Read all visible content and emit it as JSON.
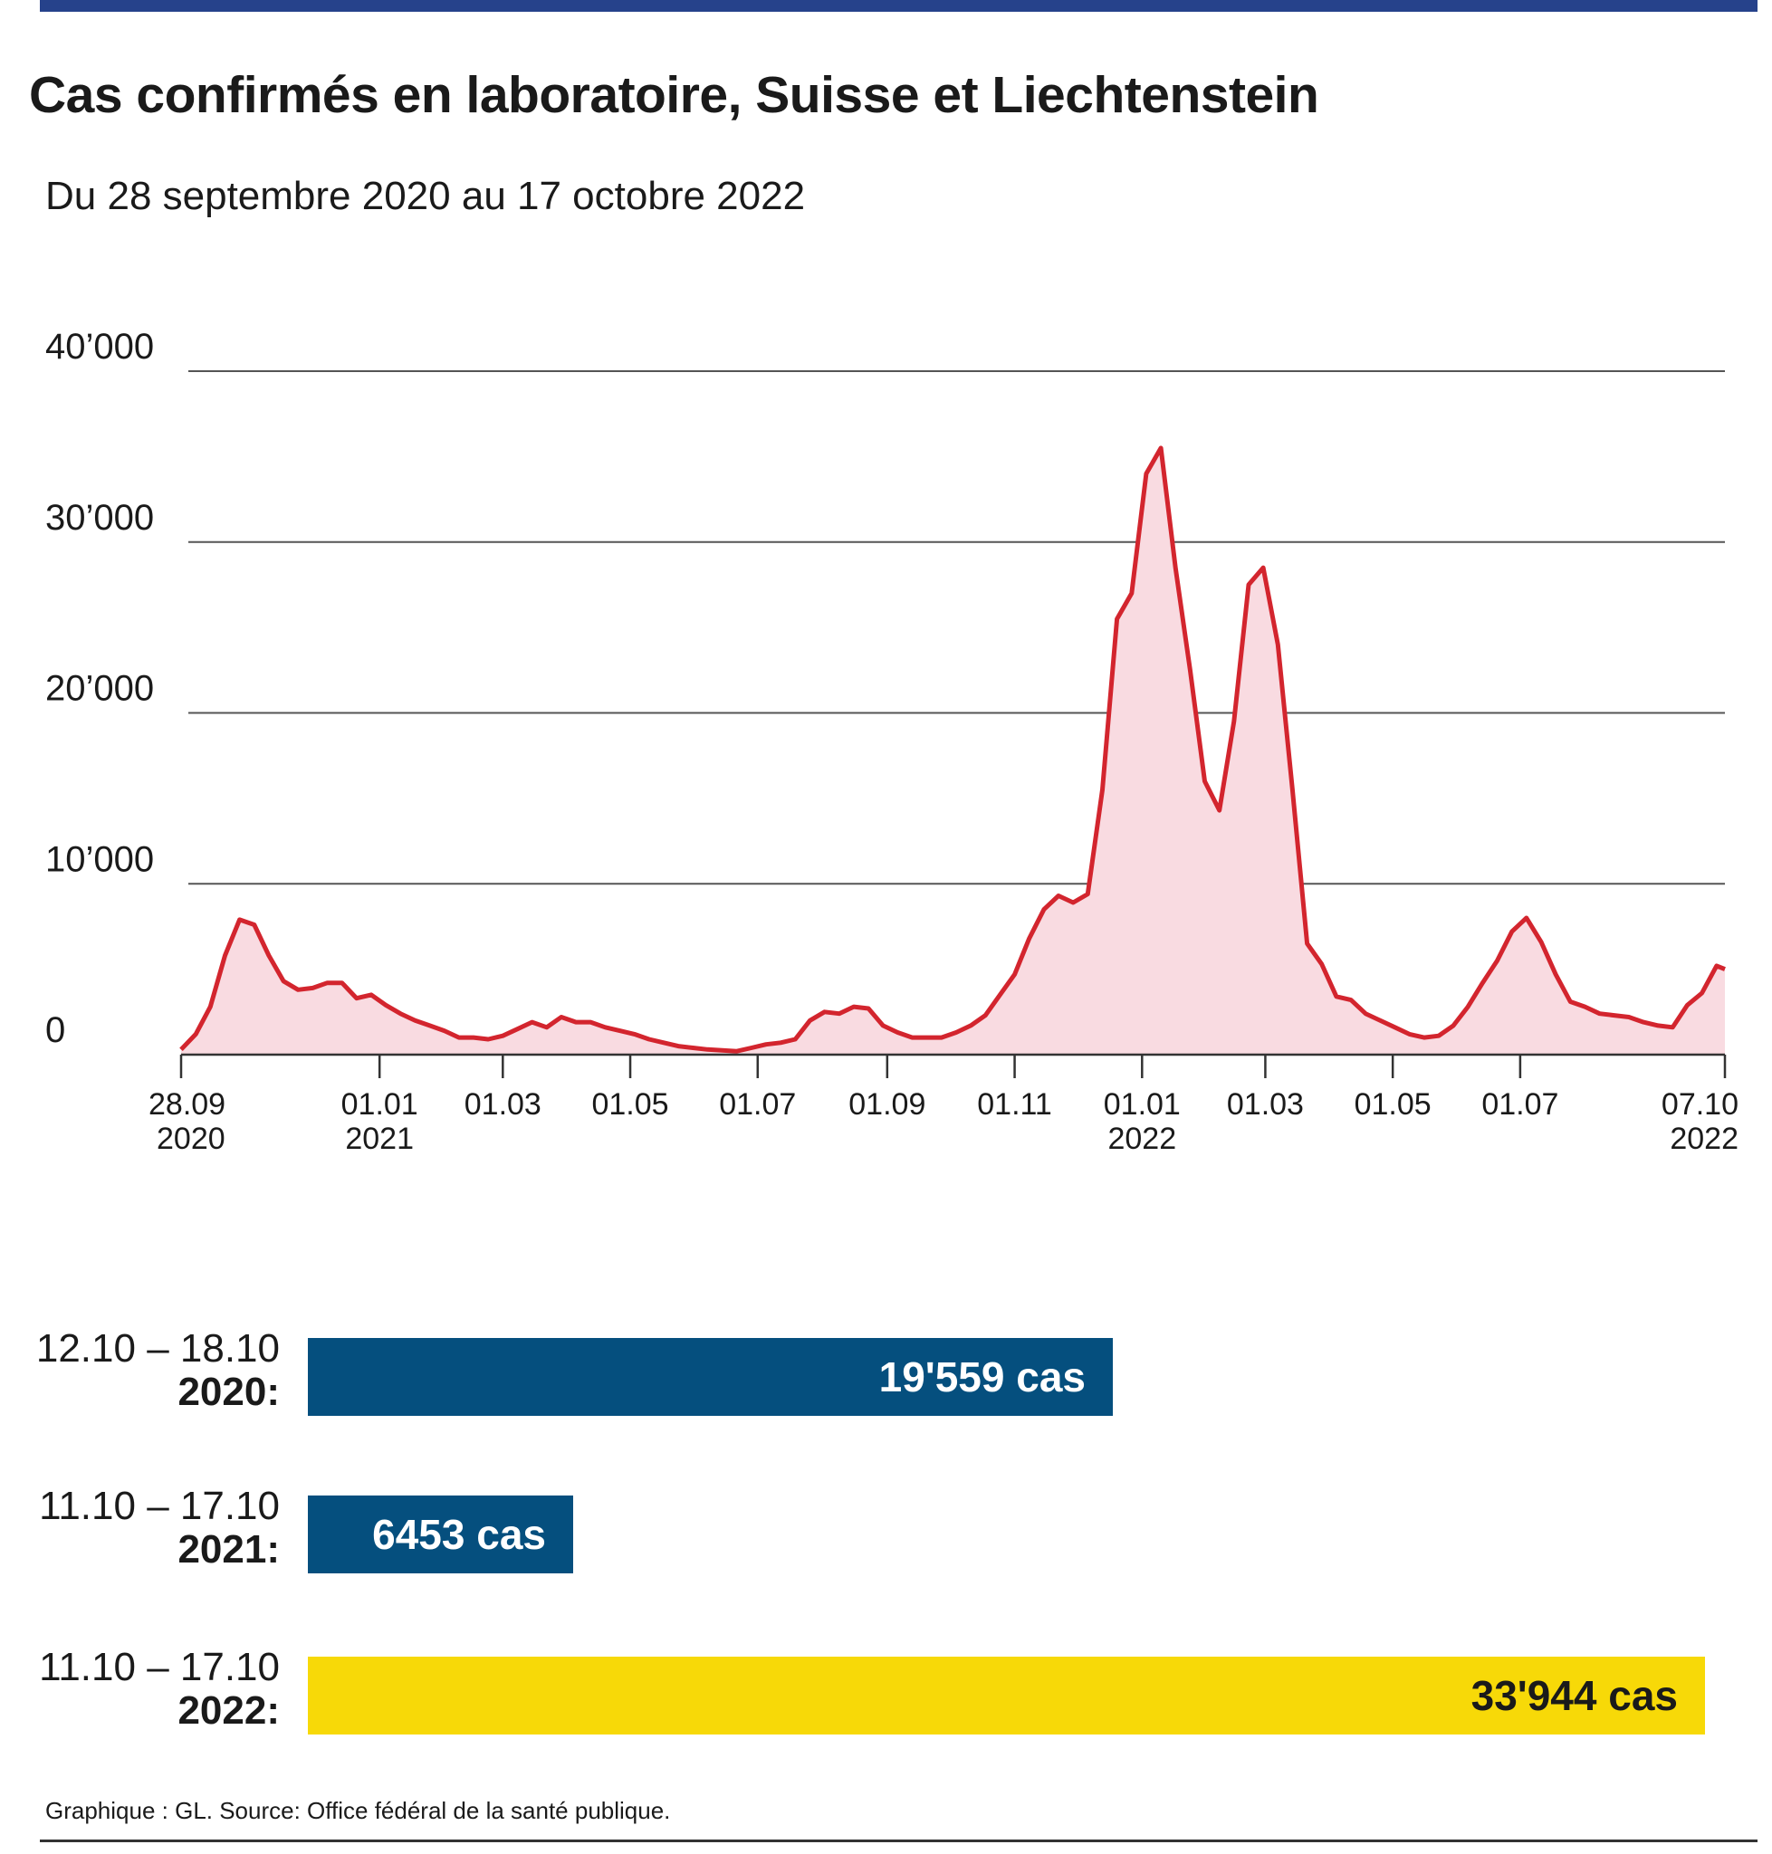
{
  "header": {
    "title": "Cas confirmés en laboratoire, Suisse et Liechtenstein",
    "subtitle": "Du 28 septembre 2020 au 17 octobre 2022",
    "accent_color": "#26428b"
  },
  "chart_data": {
    "type": "area",
    "title": "Cas confirmés en laboratoire, Suisse et Liechtenstein",
    "subtitle": "Du 28 septembre 2020 au 17 octobre 2022",
    "xlabel": "",
    "ylabel": "",
    "ylim": [
      0,
      40000
    ],
    "xlim": [
      "2020-09-28",
      "2022-10-07"
    ],
    "grid": true,
    "y_ticks": [
      {
        "value": 0,
        "label": "0"
      },
      {
        "value": 10000,
        "label": "10’000"
      },
      {
        "value": 20000,
        "label": "20’000"
      },
      {
        "value": 30000,
        "label": "30’000"
      },
      {
        "value": 40000,
        "label": "40’000"
      }
    ],
    "x_ticks": [
      {
        "date": "2020-09-28",
        "label": "28.09",
        "year": "2020"
      },
      {
        "date": "2021-01-01",
        "label": "01.01",
        "year": "2021"
      },
      {
        "date": "2021-03-01",
        "label": "01.03",
        "year": ""
      },
      {
        "date": "2021-05-01",
        "label": "01.05",
        "year": ""
      },
      {
        "date": "2021-07-01",
        "label": "01.07",
        "year": ""
      },
      {
        "date": "2021-09-01",
        "label": "01.09",
        "year": ""
      },
      {
        "date": "2021-11-01",
        "label": "01.11",
        "year": ""
      },
      {
        "date": "2022-01-01",
        "label": "01.01",
        "year": "2022"
      },
      {
        "date": "2022-03-01",
        "label": "01.03",
        "year": ""
      },
      {
        "date": "2022-05-01",
        "label": "01.05",
        "year": ""
      },
      {
        "date": "2022-07-01",
        "label": "01.07",
        "year": ""
      },
      {
        "date": "2022-10-07",
        "label": "07.10",
        "year": "2022"
      }
    ],
    "line_color": "#d3252e",
    "fill_color": "#f9dbe1",
    "series": [
      {
        "x": [
          "2020-09-28",
          "2020-10-05",
          "2020-10-12",
          "2020-10-19",
          "2020-10-26",
          "2020-11-02",
          "2020-11-09",
          "2020-11-16",
          "2020-11-23",
          "2020-11-30",
          "2020-12-07",
          "2020-12-14",
          "2020-12-21",
          "2020-12-28",
          "2021-01-04",
          "2021-01-11",
          "2021-01-18",
          "2021-01-25",
          "2021-02-01",
          "2021-02-08",
          "2021-02-15",
          "2021-02-22",
          "2021-03-01",
          "2021-03-08",
          "2021-03-15",
          "2021-03-22",
          "2021-03-29",
          "2021-04-05",
          "2021-04-12",
          "2021-04-19",
          "2021-04-26",
          "2021-05-03",
          "2021-05-10",
          "2021-05-17",
          "2021-05-24",
          "2021-05-31",
          "2021-06-07",
          "2021-06-14",
          "2021-06-21",
          "2021-06-28",
          "2021-07-05",
          "2021-07-12",
          "2021-07-19",
          "2021-07-26",
          "2021-08-02",
          "2021-08-09",
          "2021-08-16",
          "2021-08-23",
          "2021-08-30",
          "2021-09-06",
          "2021-09-13",
          "2021-09-20",
          "2021-09-27",
          "2021-10-04",
          "2021-10-11",
          "2021-10-18",
          "2021-10-25",
          "2021-11-01",
          "2021-11-08",
          "2021-11-15",
          "2021-11-22",
          "2021-11-29",
          "2021-12-06",
          "2021-12-13",
          "2021-12-20",
          "2021-12-27",
          "2022-01-03",
          "2022-01-10",
          "2022-01-17",
          "2022-01-24",
          "2022-01-31",
          "2022-02-07",
          "2022-02-14",
          "2022-02-21",
          "2022-02-28",
          "2022-03-07",
          "2022-03-14",
          "2022-03-21",
          "2022-03-28",
          "2022-04-04",
          "2022-04-11",
          "2022-04-18",
          "2022-04-25",
          "2022-05-02",
          "2022-05-09",
          "2022-05-16",
          "2022-05-23",
          "2022-05-30",
          "2022-06-06",
          "2022-06-13",
          "2022-06-20",
          "2022-06-27",
          "2022-07-04",
          "2022-07-11",
          "2022-07-18",
          "2022-07-25",
          "2022-08-01",
          "2022-08-08",
          "2022-08-15",
          "2022-08-22",
          "2022-08-29",
          "2022-09-05",
          "2022-09-12",
          "2022-09-19",
          "2022-09-26",
          "2022-10-03",
          "2022-10-07"
        ],
        "values": [
          300,
          1200,
          2800,
          5800,
          7900,
          7600,
          5800,
          4300,
          3800,
          3900,
          4200,
          4200,
          3300,
          3500,
          2900,
          2400,
          2000,
          1700,
          1400,
          1000,
          1000,
          900,
          1100,
          1500,
          1900,
          1600,
          2200,
          1900,
          1900,
          1600,
          1400,
          1200,
          900,
          700,
          500,
          400,
          300,
          250,
          200,
          400,
          600,
          700,
          900,
          2000,
          2500,
          2400,
          2800,
          2700,
          1700,
          1300,
          1000,
          1000,
          1000,
          1300,
          1700,
          2300,
          3500,
          4700,
          6800,
          8500,
          9300,
          8900,
          9400,
          15500,
          25500,
          27000,
          34000,
          35500,
          28500,
          22500,
          16000,
          14300,
          19500,
          27500,
          28500,
          24000,
          15500,
          6500,
          5300,
          3400,
          3200,
          2400,
          2000,
          1600,
          1200,
          1000,
          1100,
          1700,
          2800,
          4200,
          5500,
          7200,
          8000,
          6600,
          4700,
          3100,
          2800,
          2400,
          2300,
          2200,
          1900,
          1700,
          1600,
          2900,
          3600,
          5200,
          5000
        ]
      }
    ],
    "bars": [
      {
        "period": "12.10 – 18.10",
        "year": "2020:",
        "value": 19559,
        "label": "19'559 cas",
        "color": "#054f7e",
        "text_color": "#ffffff"
      },
      {
        "period": "11.10 – 17.10",
        "year": "2021:",
        "value": 6453,
        "label": "6453 cas",
        "color": "#054f7e",
        "text_color": "#ffffff"
      },
      {
        "period": "11.10 – 17.10",
        "year": "2022:",
        "value": 33944,
        "label": "33'944 cas",
        "color": "#f7d908",
        "text_color": "#1a1a1a"
      }
    ]
  },
  "footer": {
    "source": "Graphique : GL. Source: Office fédéral de la santé publique."
  }
}
